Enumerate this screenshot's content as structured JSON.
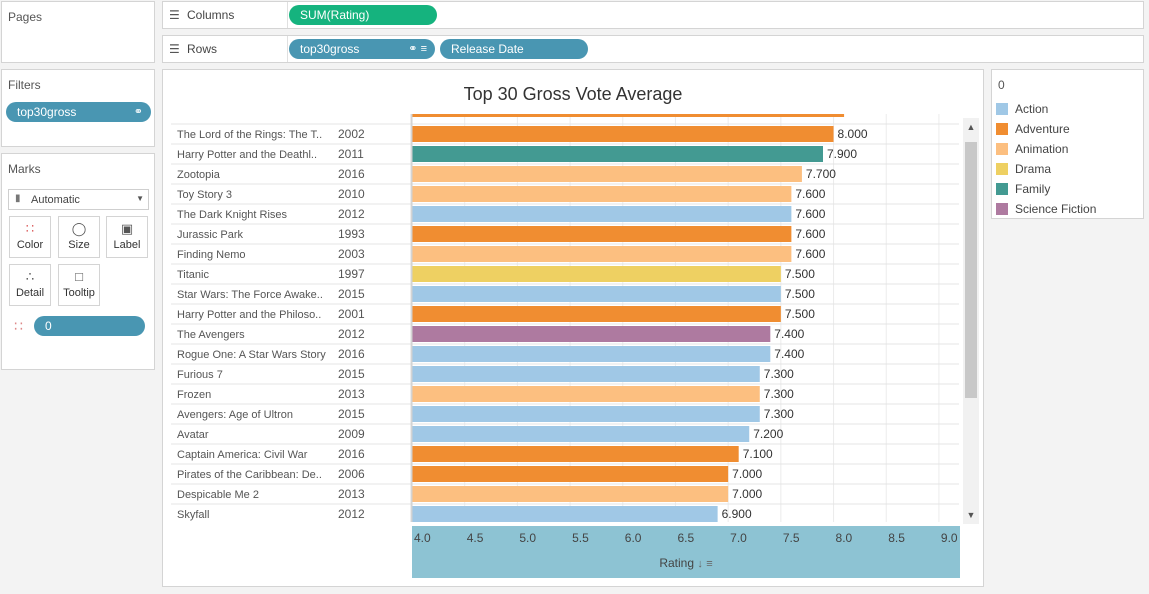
{
  "pages_panel": {
    "title": "Pages"
  },
  "columns_shelf": {
    "label": "Columns",
    "pill": "SUM(Rating)"
  },
  "rows_shelf": {
    "label": "Rows",
    "pills": [
      "top30gross",
      "Release Date"
    ]
  },
  "filters_panel": {
    "title": "Filters",
    "pill": "top30gross"
  },
  "marks_panel": {
    "title": "Marks",
    "mark_type": "Automatic",
    "buttons": [
      "Color",
      "Size",
      "Label",
      "Detail",
      "Tooltip"
    ],
    "color_pill": "0"
  },
  "legend": {
    "title": "0",
    "items": [
      {
        "label": "Action",
        "color": "#a0c8e6"
      },
      {
        "label": "Adventure",
        "color": "#f08d31"
      },
      {
        "label": "Animation",
        "color": "#fcbf80"
      },
      {
        "label": "Drama",
        "color": "#eed062"
      },
      {
        "label": "Family",
        "color": "#439a92"
      },
      {
        "label": "Science Fiction",
        "color": "#ae7aa0"
      }
    ]
  },
  "chart_data": {
    "type": "bar",
    "title": "Top 30 Gross Vote Average",
    "xlabel": "Rating",
    "xlim": [
      4.0,
      9.2
    ],
    "xticks": [
      "4.0",
      "4.5",
      "5.0",
      "5.5",
      "6.0",
      "6.5",
      "7.0",
      "7.5",
      "8.0",
      "8.5",
      "9.0"
    ],
    "rows": [
      {
        "title": "The Lord of the Rings: The T..",
        "year": "2002",
        "value": 8.0,
        "label": "8.000",
        "genre": "Adventure"
      },
      {
        "title": "Harry Potter and the Deathl..",
        "year": "2011",
        "value": 7.9,
        "label": "7.900",
        "genre": "Family"
      },
      {
        "title": "Zootopia",
        "year": "2016",
        "value": 7.7,
        "label": "7.700",
        "genre": "Animation"
      },
      {
        "title": "Toy Story 3",
        "year": "2010",
        "value": 7.6,
        "label": "7.600",
        "genre": "Animation"
      },
      {
        "title": "The Dark Knight Rises",
        "year": "2012",
        "value": 7.6,
        "label": "7.600",
        "genre": "Action"
      },
      {
        "title": "Jurassic Park",
        "year": "1993",
        "value": 7.6,
        "label": "7.600",
        "genre": "Adventure"
      },
      {
        "title": "Finding Nemo",
        "year": "2003",
        "value": 7.6,
        "label": "7.600",
        "genre": "Animation"
      },
      {
        "title": "Titanic",
        "year": "1997",
        "value": 7.5,
        "label": "7.500",
        "genre": "Drama"
      },
      {
        "title": "Star Wars: The Force Awake..",
        "year": "2015",
        "value": 7.5,
        "label": "7.500",
        "genre": "Action"
      },
      {
        "title": "Harry Potter and the Philoso..",
        "year": "2001",
        "value": 7.5,
        "label": "7.500",
        "genre": "Adventure"
      },
      {
        "title": "The Avengers",
        "year": "2012",
        "value": 7.4,
        "label": "7.400",
        "genre": "Science Fiction"
      },
      {
        "title": "Rogue One: A Star Wars Story",
        "year": "2016",
        "value": 7.4,
        "label": "7.400",
        "genre": "Action"
      },
      {
        "title": "Furious 7",
        "year": "2015",
        "value": 7.3,
        "label": "7.300",
        "genre": "Action"
      },
      {
        "title": "Frozen",
        "year": "2013",
        "value": 7.3,
        "label": "7.300",
        "genre": "Animation"
      },
      {
        "title": "Avengers: Age of Ultron",
        "year": "2015",
        "value": 7.3,
        "label": "7.300",
        "genre": "Action"
      },
      {
        "title": "Avatar",
        "year": "2009",
        "value": 7.2,
        "label": "7.200",
        "genre": "Action"
      },
      {
        "title": "Captain America: Civil War",
        "year": "2016",
        "value": 7.1,
        "label": "7.100",
        "genre": "Adventure"
      },
      {
        "title": "Pirates of the Caribbean: De..",
        "year": "2006",
        "value": 7.0,
        "label": "7.000",
        "genre": "Adventure"
      },
      {
        "title": "Despicable Me 2",
        "year": "2013",
        "value": 7.0,
        "label": "7.000",
        "genre": "Animation"
      },
      {
        "title": "Skyfall",
        "year": "2012",
        "value": 6.9,
        "label": "6.900",
        "genre": "Action"
      }
    ]
  }
}
